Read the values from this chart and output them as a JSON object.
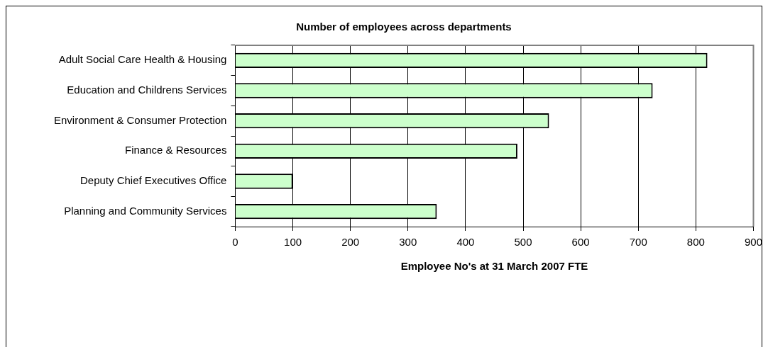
{
  "chart_data": {
    "type": "bar",
    "orientation": "horizontal",
    "title": "Number of employees across departments",
    "xlabel": "Employee No's at 31 March 2007 FTE",
    "categories": [
      "Adult Social Care Health & Housing",
      "Education and Childrens Services",
      "Environment & Consumer Protection",
      "Finance & Resources",
      "Deputy Chief Executives Office",
      "Planning and Community Services"
    ],
    "values": [
      820,
      725,
      545,
      490,
      100,
      350
    ],
    "color": "#ccffcc",
    "xlim": [
      0,
      900
    ],
    "xticks": [
      0,
      100,
      200,
      300,
      400,
      500,
      600,
      700,
      800,
      900
    ],
    "grid": "x",
    "legend": false
  }
}
